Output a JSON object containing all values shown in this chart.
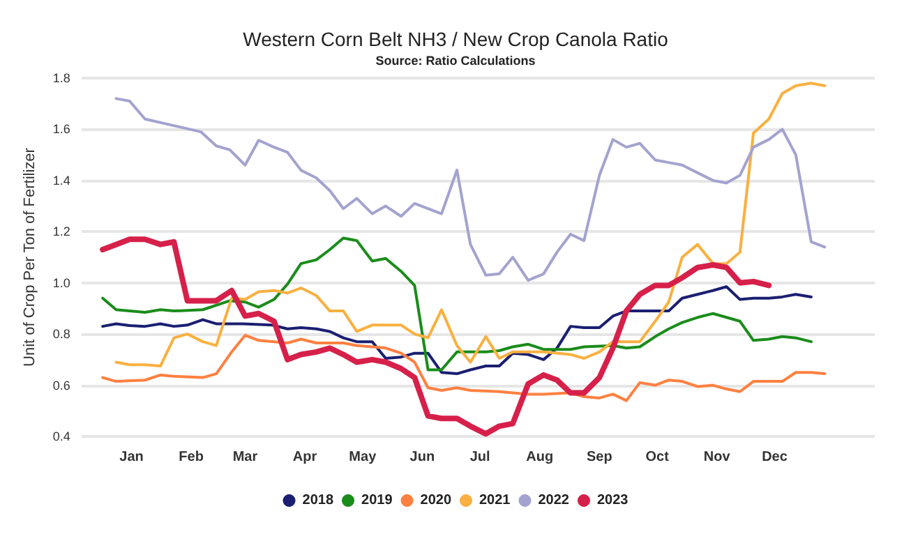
{
  "chart_data": {
    "type": "line",
    "title": "Western Corn Belt NH3 / New Crop Canola Ratio",
    "subtitle": "Source: Ratio Calculations",
    "ylabel": "Unit of Crop Per Ton of Fertilizer",
    "xlim": [
      "2022-12-06",
      "2024-01-22"
    ],
    "xticks": [
      {
        "value": "2023-01-01",
        "label": "Jan"
      },
      {
        "value": "2023-02-01",
        "label": "Feb"
      },
      {
        "value": "2023-03-01",
        "label": "Mar"
      },
      {
        "value": "2023-04-01",
        "label": "Apr"
      },
      {
        "value": "2023-05-01",
        "label": "May"
      },
      {
        "value": "2023-06-01",
        "label": "Jun"
      },
      {
        "value": "2023-07-01",
        "label": "Jul"
      },
      {
        "value": "2023-08-01",
        "label": "Aug"
      },
      {
        "value": "2023-09-01",
        "label": "Sep"
      },
      {
        "value": "2023-10-01",
        "label": "Oct"
      },
      {
        "value": "2023-11-01",
        "label": "Nov"
      },
      {
        "value": "2023-12-01",
        "label": "Dec"
      }
    ],
    "ylim": [
      0.4,
      1.8
    ],
    "yticks": [
      0.4,
      0.6,
      0.8,
      {
        "value": 1,
        "label": "1.0"
      },
      1.2,
      1.4,
      1.6,
      1.8
    ],
    "grid": "y",
    "legend": "bottom",
    "marker": "none",
    "line_style": "solid",
    "series": [
      {
        "name": "2018",
        "color": "#1a1f71",
        "x": [
          "2022-12-17",
          "2022-12-24",
          "2022-12-31",
          "2023-01-08",
          "2023-01-16",
          "2023-01-23",
          "2023-01-30",
          "2023-02-07",
          "2023-02-14",
          "2023-02-28",
          "2023-03-15",
          "2023-03-23",
          "2023-03-30",
          "2023-04-07",
          "2023-04-14",
          "2023-04-21",
          "2023-04-28",
          "2023-05-06",
          "2023-05-13",
          "2023-05-21",
          "2023-05-28",
          "2023-06-04",
          "2023-06-11",
          "2023-06-19",
          "2023-06-26",
          "2023-07-04",
          "2023-07-11",
          "2023-07-18",
          "2023-07-26",
          "2023-08-03",
          "2023-08-10",
          "2023-08-17",
          "2023-08-24",
          "2023-09-01",
          "2023-09-08",
          "2023-09-15",
          "2023-09-22",
          "2023-10-07",
          "2023-10-14",
          "2023-10-22",
          "2023-10-30",
          "2023-11-06",
          "2023-11-13",
          "2023-11-20",
          "2023-11-28",
          "2023-12-05",
          "2023-12-12",
          "2023-12-20"
        ],
        "values": [
          0.83,
          0.84,
          0.833,
          0.83,
          0.84,
          0.83,
          0.835,
          0.856,
          0.84,
          0.84,
          0.835,
          0.82,
          0.825,
          0.82,
          0.81,
          0.785,
          0.77,
          0.77,
          0.705,
          0.71,
          0.725,
          0.725,
          0.65,
          0.645,
          0.66,
          0.675,
          0.675,
          0.725,
          0.72,
          0.7,
          0.745,
          0.83,
          0.825,
          0.825,
          0.87,
          0.89,
          0.89,
          0.89,
          0.94,
          0.955,
          0.97,
          0.985,
          0.935,
          0.94,
          0.94,
          0.945,
          0.955,
          0.945
        ]
      },
      {
        "name": "2019",
        "color": "#1a8c1a",
        "x": [
          "2022-12-17",
          "2022-12-24",
          "2022-12-31",
          "2023-01-08",
          "2023-01-16",
          "2023-01-23",
          "2023-02-07",
          "2023-02-21",
          "2023-03-01",
          "2023-03-08",
          "2023-03-16",
          "2023-03-23",
          "2023-03-30",
          "2023-04-07",
          "2023-04-14",
          "2023-04-21",
          "2023-04-28",
          "2023-05-06",
          "2023-05-13",
          "2023-05-21",
          "2023-05-28",
          "2023-06-04",
          "2023-06-11",
          "2023-06-19",
          "2023-07-04",
          "2023-07-11",
          "2023-07-18",
          "2023-07-26",
          "2023-08-03",
          "2023-08-17",
          "2023-08-24",
          "2023-09-08",
          "2023-09-15",
          "2023-09-22",
          "2023-09-30",
          "2023-10-07",
          "2023-10-14",
          "2023-10-22",
          "2023-10-30",
          "2023-11-06",
          "2023-11-13",
          "2023-11-20",
          "2023-11-28",
          "2023-12-05",
          "2023-12-12",
          "2023-12-20"
        ],
        "values": [
          0.94,
          0.895,
          0.89,
          0.885,
          0.895,
          0.89,
          0.895,
          0.93,
          0.925,
          0.905,
          0.935,
          0.995,
          1.075,
          1.09,
          1.13,
          1.175,
          1.165,
          1.085,
          1.095,
          1.045,
          0.99,
          0.66,
          0.66,
          0.73,
          0.73,
          0.735,
          0.75,
          0.76,
          0.74,
          0.74,
          0.75,
          0.755,
          0.745,
          0.75,
          0.79,
          0.82,
          0.845,
          0.865,
          0.88,
          0.865,
          0.85,
          0.775,
          0.78,
          0.79,
          0.785,
          0.77
        ]
      },
      {
        "name": "2020",
        "color": "#ff8040",
        "x": [
          "2022-12-17",
          "2022-12-24",
          "2023-01-08",
          "2023-01-16",
          "2023-01-23",
          "2023-02-07",
          "2023-02-14",
          "2023-02-22",
          "2023-03-01",
          "2023-03-08",
          "2023-03-16",
          "2023-03-23",
          "2023-03-30",
          "2023-04-07",
          "2023-04-21",
          "2023-04-28",
          "2023-05-06",
          "2023-05-13",
          "2023-05-21",
          "2023-05-28",
          "2023-06-04",
          "2023-06-11",
          "2023-06-19",
          "2023-06-26",
          "2023-07-11",
          "2023-07-26",
          "2023-08-03",
          "2023-08-17",
          "2023-08-24",
          "2023-09-01",
          "2023-09-08",
          "2023-09-15",
          "2023-09-22",
          "2023-09-30",
          "2023-10-07",
          "2023-10-14",
          "2023-10-22",
          "2023-10-30",
          "2023-11-06",
          "2023-11-13",
          "2023-11-20",
          "2023-12-05",
          "2023-12-12",
          "2023-12-20",
          "2023-12-27"
        ],
        "values": [
          0.63,
          0.615,
          0.62,
          0.64,
          0.635,
          0.63,
          0.645,
          0.73,
          0.795,
          0.775,
          0.77,
          0.765,
          0.78,
          0.765,
          0.765,
          0.755,
          0.75,
          0.745,
          0.725,
          0.69,
          0.59,
          0.58,
          0.59,
          0.58,
          0.575,
          0.565,
          0.565,
          0.57,
          0.555,
          0.55,
          0.565,
          0.54,
          0.61,
          0.6,
          0.62,
          0.615,
          0.595,
          0.6,
          0.585,
          0.575,
          0.615,
          0.615,
          0.65,
          0.65,
          0.645
        ]
      },
      {
        "name": "2021",
        "color": "#f9b040",
        "x": [
          "2022-12-24",
          "2022-12-31",
          "2023-01-08",
          "2023-01-16",
          "2023-01-23",
          "2023-01-30",
          "2023-02-07",
          "2023-02-14",
          "2023-02-22",
          "2023-03-01",
          "2023-03-08",
          "2023-03-16",
          "2023-03-23",
          "2023-03-30",
          "2023-04-07",
          "2023-04-14",
          "2023-04-21",
          "2023-04-28",
          "2023-05-06",
          "2023-05-21",
          "2023-05-28",
          "2023-06-04",
          "2023-06-11",
          "2023-06-19",
          "2023-06-26",
          "2023-07-04",
          "2023-07-11",
          "2023-07-18",
          "2023-08-03",
          "2023-08-17",
          "2023-08-24",
          "2023-09-01",
          "2023-09-08",
          "2023-09-22",
          "2023-09-30",
          "2023-10-07",
          "2023-10-14",
          "2023-10-22",
          "2023-10-30",
          "2023-11-06",
          "2023-11-13",
          "2023-11-20",
          "2023-11-28",
          "2023-12-05",
          "2023-12-12",
          "2023-12-20",
          "2023-12-27"
        ],
        "values": [
          0.69,
          0.68,
          0.68,
          0.675,
          0.785,
          0.8,
          0.77,
          0.755,
          0.94,
          0.935,
          0.965,
          0.97,
          0.96,
          0.98,
          0.95,
          0.89,
          0.89,
          0.81,
          0.835,
          0.835,
          0.8,
          0.785,
          0.895,
          0.755,
          0.69,
          0.79,
          0.705,
          0.73,
          0.73,
          0.72,
          0.705,
          0.73,
          0.77,
          0.77,
          0.85,
          0.925,
          1.1,
          1.15,
          1.075,
          1.075,
          1.12,
          1.585,
          1.64,
          1.74,
          1.77,
          1.78,
          1.77
        ]
      },
      {
        "name": "2022",
        "color": "#a3a3cf",
        "x": [
          "2022-12-24",
          "2022-12-31",
          "2023-01-08",
          "2023-02-06",
          "2023-02-14",
          "2023-02-21",
          "2023-03-01",
          "2023-03-08",
          "2023-03-16",
          "2023-03-23",
          "2023-03-30",
          "2023-04-07",
          "2023-04-14",
          "2023-04-21",
          "2023-04-28",
          "2023-05-06",
          "2023-05-13",
          "2023-05-21",
          "2023-05-28",
          "2023-06-11",
          "2023-06-19",
          "2023-06-26",
          "2023-07-04",
          "2023-07-11",
          "2023-07-18",
          "2023-07-26",
          "2023-08-03",
          "2023-08-10",
          "2023-08-17",
          "2023-08-24",
          "2023-09-01",
          "2023-09-08",
          "2023-09-15",
          "2023-09-22",
          "2023-09-30",
          "2023-10-07",
          "2023-10-14",
          "2023-10-22",
          "2023-10-30",
          "2023-11-06",
          "2023-11-13",
          "2023-11-20",
          "2023-11-28",
          "2023-12-05",
          "2023-12-12",
          "2023-12-20",
          "2023-12-27"
        ],
        "values": [
          1.72,
          1.71,
          1.64,
          1.59,
          1.535,
          1.52,
          1.46,
          1.557,
          1.53,
          1.51,
          1.44,
          1.41,
          1.36,
          1.29,
          1.33,
          1.27,
          1.3,
          1.26,
          1.31,
          1.27,
          1.44,
          1.15,
          1.03,
          1.035,
          1.1,
          1.01,
          1.035,
          1.12,
          1.19,
          1.165,
          1.42,
          1.56,
          1.53,
          1.545,
          1.48,
          1.47,
          1.46,
          1.43,
          1.4,
          1.39,
          1.42,
          1.53,
          1.56,
          1.6,
          1.5,
          1.16,
          1.14
        ]
      },
      {
        "name": "2023",
        "color": "#d6204a",
        "x": [
          "2022-12-17",
          "2022-12-24",
          "2022-12-31",
          "2023-01-08",
          "2023-01-16",
          "2023-01-23",
          "2023-01-30",
          "2023-02-07",
          "2023-02-14",
          "2023-02-22",
          "2023-03-01",
          "2023-03-08",
          "2023-03-16",
          "2023-03-23",
          "2023-03-30",
          "2023-04-07",
          "2023-04-14",
          "2023-04-21",
          "2023-04-28",
          "2023-05-06",
          "2023-05-13",
          "2023-05-21",
          "2023-05-28",
          "2023-06-04",
          "2023-06-11",
          "2023-06-19",
          "2023-06-26",
          "2023-07-04",
          "2023-07-11",
          "2023-07-18",
          "2023-07-26",
          "2023-08-03",
          "2023-08-10",
          "2023-08-17",
          "2023-08-24",
          "2023-09-01",
          "2023-09-08",
          "2023-09-15",
          "2023-09-22",
          "2023-09-30",
          "2023-10-07",
          "2023-10-14",
          "2023-10-22",
          "2023-10-30",
          "2023-11-06",
          "2023-11-13",
          "2023-11-20",
          "2023-11-28"
        ],
        "values": [
          1.13,
          1.15,
          1.17,
          1.17,
          1.15,
          1.16,
          0.93,
          0.93,
          0.93,
          0.97,
          0.87,
          0.88,
          0.85,
          0.7,
          0.72,
          0.73,
          0.745,
          0.72,
          0.69,
          0.7,
          0.69,
          0.665,
          0.63,
          0.48,
          0.47,
          0.47,
          0.44,
          0.41,
          0.44,
          0.45,
          0.605,
          0.64,
          0.62,
          0.57,
          0.57,
          0.63,
          0.745,
          0.89,
          0.955,
          0.99,
          0.99,
          1.02,
          1.06,
          1.07,
          1.06,
          1.0,
          1.005,
          0.99
        ]
      }
    ]
  }
}
